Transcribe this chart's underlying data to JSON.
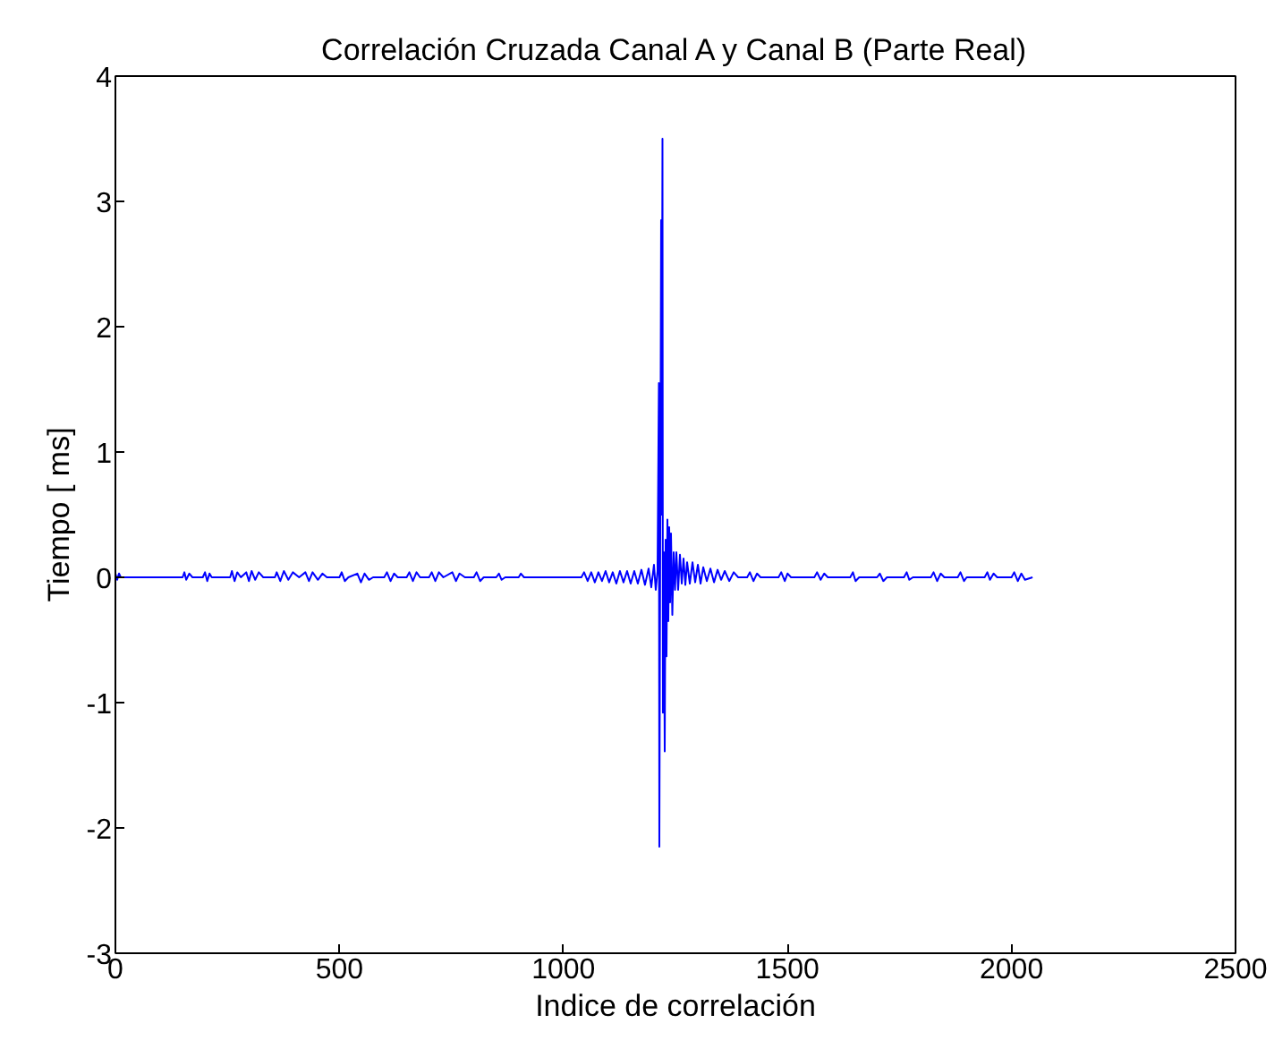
{
  "chart_data": {
    "type": "line",
    "title": "Correlación Cruzada Canal A y Canal B (Parte Real)",
    "xlabel": "Indice de correlación",
    "ylabel": "Tiempo [ ms]",
    "xlim": [
      0,
      2500
    ],
    "ylim": [
      -3,
      4
    ],
    "xticks": [
      0,
      500,
      1000,
      1500,
      2000,
      2500
    ],
    "yticks": [
      -3,
      -2,
      -1,
      0,
      1,
      2,
      3,
      4
    ],
    "x": [
      0,
      4,
      8,
      12,
      36,
      150,
      154,
      158,
      165,
      172,
      195,
      200,
      205,
      210,
      215,
      256,
      260,
      266,
      272,
      280,
      292,
      298,
      304,
      312,
      320,
      330,
      356,
      360,
      368,
      376,
      386,
      396,
      410,
      424,
      432,
      440,
      452,
      462,
      472,
      500,
      505,
      512,
      520,
      540,
      548,
      556,
      566,
      575,
      600,
      606,
      614,
      622,
      630,
      650,
      656,
      664,
      672,
      680,
      700,
      706,
      714,
      722,
      732,
      752,
      760,
      768,
      780,
      800,
      806,
      814,
      822,
      850,
      856,
      862,
      870,
      900,
      905,
      912,
      940,
      1040,
      1046,
      1054,
      1062,
      1070,
      1078,
      1086,
      1094,
      1102,
      1110,
      1118,
      1126,
      1134,
      1142,
      1150,
      1158,
      1166,
      1174,
      1182,
      1190,
      1196,
      1202,
      1206,
      1210,
      1213,
      1214,
      1216,
      1218,
      1219,
      1221,
      1222,
      1224,
      1226,
      1228,
      1230,
      1232,
      1234,
      1236,
      1238,
      1240,
      1243,
      1246,
      1249,
      1252,
      1256,
      1260,
      1264,
      1268,
      1272,
      1276,
      1282,
      1288,
      1294,
      1300,
      1306,
      1312,
      1320,
      1328,
      1336,
      1344,
      1352,
      1360,
      1370,
      1380,
      1390,
      1410,
      1416,
      1424,
      1432,
      1440,
      1480,
      1486,
      1494,
      1500,
      1508,
      1560,
      1566,
      1574,
      1582,
      1590,
      1640,
      1646,
      1652,
      1660,
      1700,
      1706,
      1714,
      1722,
      1760,
      1766,
      1772,
      1780,
      1820,
      1826,
      1834,
      1842,
      1850,
      1880,
      1886,
      1894,
      1900,
      1940,
      1946,
      1952,
      1960,
      1968,
      2000,
      2006,
      2014,
      2022,
      2030,
      2047
    ],
    "series": [
      {
        "color": "#0000ff",
        "values": [
          0.03,
          -0.02,
          0.03,
          0,
          0,
          0,
          0.04,
          -0.02,
          0.03,
          0,
          0,
          0.04,
          -0.03,
          0.03,
          0,
          0,
          0.05,
          -0.03,
          0.04,
          0,
          0.04,
          -0.03,
          0.05,
          -0.02,
          0.04,
          0,
          0,
          0.04,
          -0.03,
          0.05,
          -0.02,
          0.04,
          0,
          0.04,
          -0.03,
          0.04,
          -0.02,
          0.03,
          0,
          0,
          0.04,
          -0.03,
          0,
          0.03,
          -0.04,
          0.03,
          -0.02,
          0,
          0,
          0.04,
          -0.03,
          0.03,
          0,
          0,
          0.04,
          -0.03,
          0.04,
          0,
          0,
          0.04,
          -0.03,
          0.04,
          0,
          0.04,
          -0.03,
          0.03,
          0,
          0,
          0.04,
          -0.03,
          0,
          0,
          0.03,
          -0.02,
          0,
          0,
          0.03,
          0,
          0,
          0,
          0.04,
          -0.03,
          0.04,
          -0.04,
          0.04,
          -0.03,
          0.05,
          -0.04,
          0.04,
          -0.05,
          0.05,
          -0.04,
          0.05,
          -0.05,
          0.05,
          -0.05,
          0.06,
          -0.06,
          0.07,
          -0.08,
          0.1,
          -0.1,
          0.05,
          1.55,
          -2.15,
          0.3,
          2.85,
          0.5,
          3.5,
          -1.08,
          0.2,
          -1.39,
          0.3,
          -0.63,
          0.46,
          -0.35,
          0.4,
          -0.2,
          0.35,
          -0.3,
          0.2,
          -0.1,
          0.2,
          -0.1,
          0.18,
          -0.05,
          0.15,
          -0.06,
          0.12,
          -0.05,
          0.12,
          -0.04,
          0.1,
          -0.05,
          0.08,
          -0.03,
          0.07,
          -0.04,
          0.06,
          -0.02,
          0.05,
          -0.03,
          0.04,
          0,
          0,
          0.04,
          -0.03,
          0.03,
          0,
          0,
          0.04,
          -0.03,
          0.03,
          0,
          0,
          0.04,
          -0.02,
          0.03,
          0,
          0,
          0.04,
          -0.03,
          0,
          0,
          0.03,
          -0.03,
          0,
          0,
          0.04,
          -0.02,
          0,
          0,
          0.04,
          -0.03,
          0.03,
          0,
          0,
          0.04,
          -0.03,
          0,
          0,
          0.04,
          -0.02,
          0.03,
          0,
          0,
          0.04,
          -0.03,
          0.03,
          -0.02,
          0
        ]
      }
    ]
  }
}
